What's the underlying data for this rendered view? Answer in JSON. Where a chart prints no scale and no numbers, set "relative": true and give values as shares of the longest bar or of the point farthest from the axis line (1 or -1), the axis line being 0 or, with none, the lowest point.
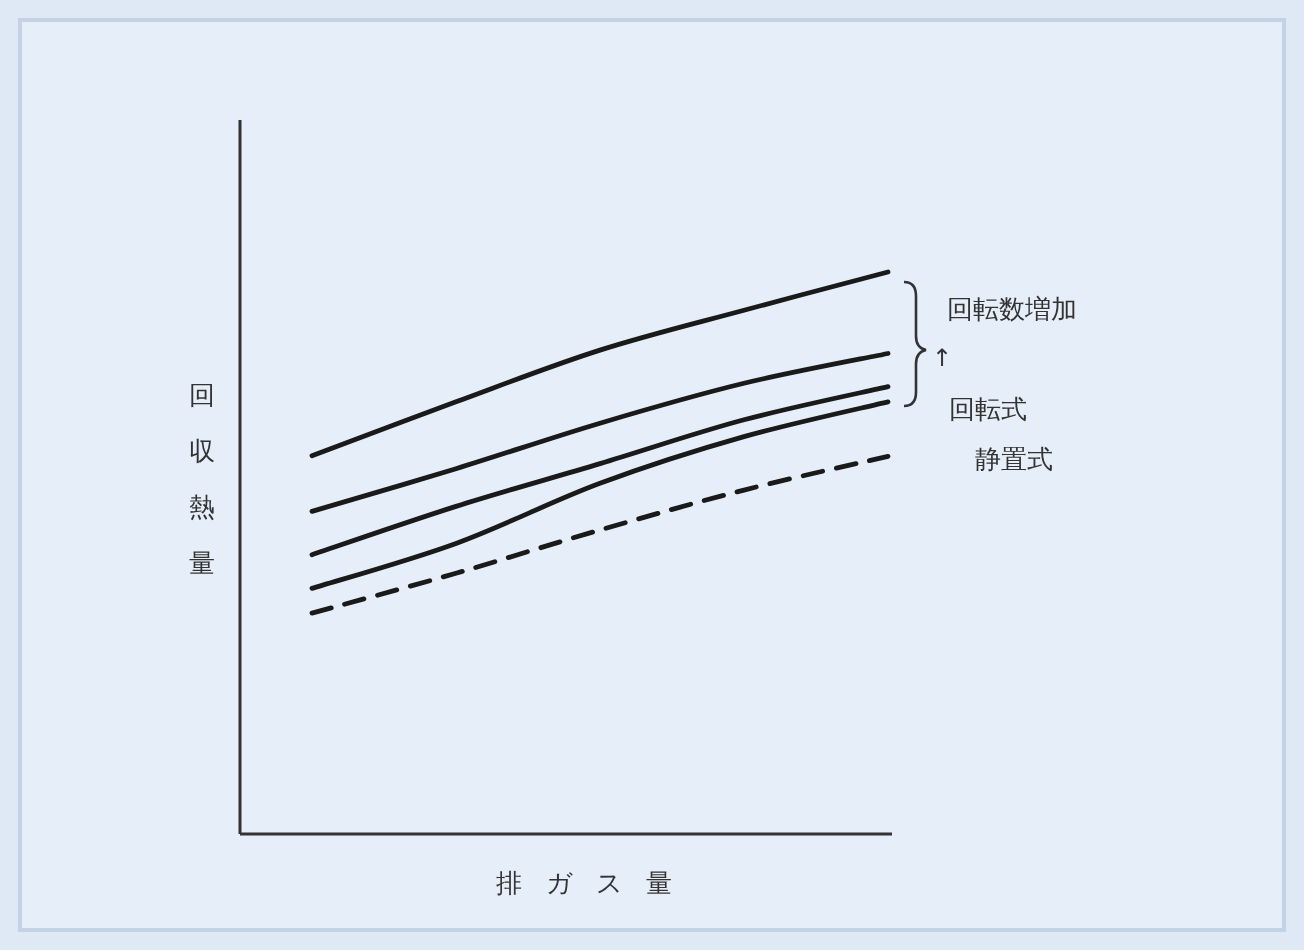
{
  "chart_data": {
    "type": "line",
    "relative": true,
    "ylabel": "回収熱量",
    "xlabel": "排ガス量",
    "categories": [
      null,
      null,
      null,
      null,
      null
    ],
    "series": [
      {
        "color": "#1a1a1a",
        "line_style": "solid",
        "values": [
          0.673,
          0.769,
          0.861,
          0.932,
          1
        ]
      },
      {
        "color": "#1a1a1a",
        "line_style": "solid",
        "values": [
          0.574,
          0.65,
          0.731,
          0.802,
          0.855
        ]
      },
      {
        "color": "#1a1a1a",
        "line_style": "solid",
        "values": [
          0.497,
          0.583,
          0.659,
          0.737,
          0.796
        ]
      },
      {
        "color": "#1a1a1a",
        "line_style": "solid",
        "values": [
          0.437,
          0.517,
          0.624,
          0.707,
          0.769
        ]
      },
      {
        "color": "#1a1a1a",
        "line_style": "dashed",
        "values": [
          0.393,
          0.464,
          0.541,
          0.612,
          0.672
        ]
      }
    ],
    "annotations": [
      "回転数増加",
      "↑",
      "回転式",
      "静置式"
    ]
  }
}
